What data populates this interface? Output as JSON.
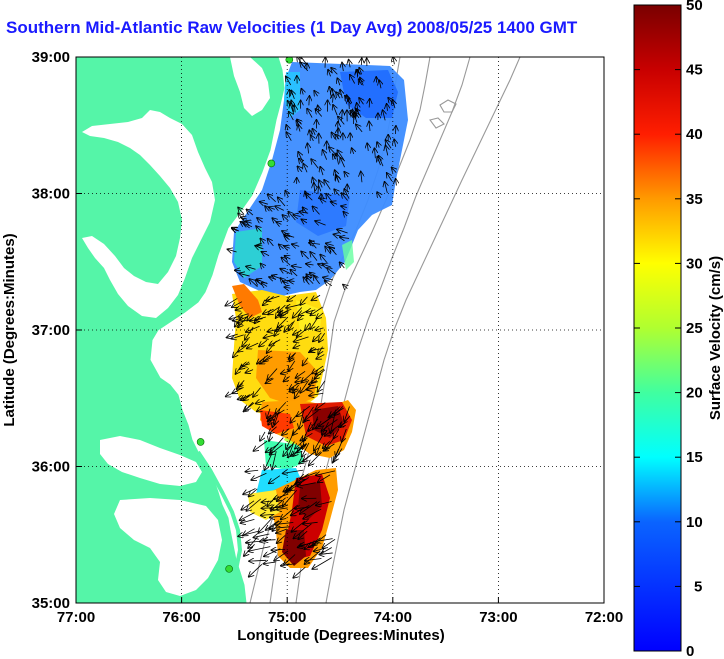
{
  "title": "Southern Mid-Atlantic Raw Velocities (1 Day Avg) 2008/05/25 1400 GMT",
  "axes": {
    "xlabel": "Longitude (Degrees:Minutes)",
    "ylabel": "Latitude (Degrees:Minutes)",
    "x_ticks": [
      "77:00",
      "76:00",
      "75:00",
      "74:00",
      "73:00",
      "72:00"
    ],
    "y_ticks": [
      "39:00",
      "38:00",
      "37:00",
      "36:00",
      "35:00"
    ]
  },
  "colorbar": {
    "label": "Surface Velocity (cm/s)",
    "ticks": [
      "50",
      "45",
      "40",
      "35",
      "30",
      "25",
      "20",
      "15",
      "10",
      "5",
      "0"
    ],
    "range": [
      0,
      50
    ]
  },
  "colors": {
    "land": "#55f5a8",
    "title": "#1a1aff",
    "station": "#33dd33",
    "bathymetry": "#999999"
  },
  "chart_data": {
    "type": "heatmap",
    "title": "Southern Mid-Atlantic Raw Velocities (1 Day Avg) 2008/05/25 1400 GMT",
    "xlabel": "Longitude (Degrees:Minutes)",
    "ylabel": "Latitude (Degrees:Minutes)",
    "xlim": [
      -77,
      -72
    ],
    "ylim": [
      35,
      39
    ],
    "grid": true,
    "colorbar_label": "Surface Velocity (cm/s)",
    "colorbar_range": [
      0,
      50
    ],
    "stations": [
      {
        "lon": -74.98,
        "lat": 38.98
      },
      {
        "lon": -75.15,
        "lat": 38.22
      },
      {
        "lon": -75.82,
        "lat": 36.18
      },
      {
        "lon": -75.55,
        "lat": 35.25
      }
    ]
  }
}
